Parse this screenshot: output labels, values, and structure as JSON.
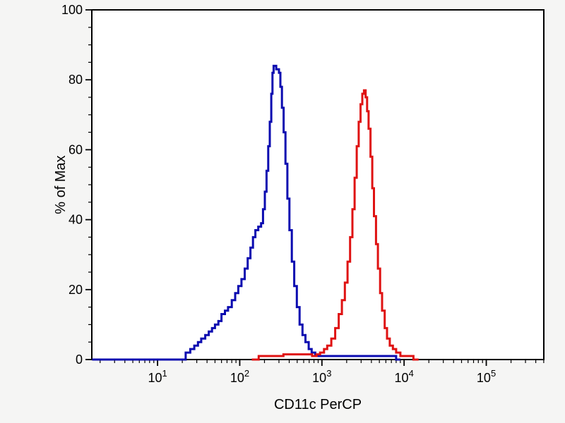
{
  "figure": {
    "background_color": "#f5f5f4",
    "plot_background": "#ffffff",
    "frame_color": "#000000"
  },
  "chart_data": {
    "type": "line",
    "subtype": "flow-cytometry-histogram",
    "title": "",
    "xlabel": "CD11c PerCP",
    "ylabel": "% of Max",
    "x_scale": "log10",
    "x_range_log10": [
      0.2,
      5.7
    ],
    "ylim": [
      0,
      100
    ],
    "grid": false,
    "legend": false,
    "y_major_ticks": [
      0,
      20,
      40,
      60,
      80,
      100
    ],
    "y_minor_step": 5,
    "x_major_ticks": [
      {
        "base": "10",
        "exp": "1",
        "value": 10
      },
      {
        "base": "10",
        "exp": "2",
        "value": 100
      },
      {
        "base": "10",
        "exp": "3",
        "value": 1000
      },
      {
        "base": "10",
        "exp": "4",
        "value": 10000
      },
      {
        "base": "10",
        "exp": "5",
        "value": 100000
      }
    ],
    "x_minor_multiples": [
      2,
      3,
      4,
      5,
      6,
      7,
      8,
      9
    ],
    "series": [
      {
        "name": "blue",
        "color": "#0b0bb0",
        "line_width": 3,
        "points": [
          [
            1.6,
            0
          ],
          [
            20,
            0
          ],
          [
            22,
            2
          ],
          [
            25,
            3
          ],
          [
            28,
            4
          ],
          [
            31,
            5
          ],
          [
            34,
            6
          ],
          [
            38,
            7
          ],
          [
            42,
            8
          ],
          [
            46,
            9
          ],
          [
            50,
            10
          ],
          [
            55,
            11
          ],
          [
            60,
            13
          ],
          [
            66,
            14
          ],
          [
            72,
            15
          ],
          [
            80,
            17
          ],
          [
            88,
            19
          ],
          [
            96,
            21
          ],
          [
            105,
            23
          ],
          [
            115,
            26
          ],
          [
            125,
            29
          ],
          [
            135,
            32
          ],
          [
            145,
            35
          ],
          [
            155,
            37
          ],
          [
            168,
            38
          ],
          [
            182,
            39
          ],
          [
            192,
            43
          ],
          [
            202,
            48
          ],
          [
            212,
            54
          ],
          [
            222,
            61
          ],
          [
            232,
            68
          ],
          [
            242,
            76
          ],
          [
            250,
            82
          ],
          [
            258,
            84
          ],
          [
            268,
            84
          ],
          [
            278,
            83
          ],
          [
            290,
            83
          ],
          [
            300,
            82
          ],
          [
            312,
            78
          ],
          [
            326,
            72
          ],
          [
            342,
            65
          ],
          [
            360,
            56
          ],
          [
            380,
            46
          ],
          [
            402,
            37
          ],
          [
            430,
            28
          ],
          [
            460,
            21
          ],
          [
            495,
            15
          ],
          [
            535,
            10
          ],
          [
            580,
            7
          ],
          [
            630,
            5
          ],
          [
            690,
            3
          ],
          [
            750,
            2
          ],
          [
            830,
            1
          ],
          [
            1000,
            1
          ],
          [
            2000,
            1
          ],
          [
            3500,
            1
          ],
          [
            5000,
            1
          ],
          [
            6500,
            1
          ],
          [
            8000,
            0
          ],
          [
            9000,
            0
          ]
        ]
      },
      {
        "name": "red",
        "color": "#df1212",
        "line_width": 3,
        "points": [
          [
            140,
            0
          ],
          [
            170,
            1
          ],
          [
            260,
            1
          ],
          [
            340,
            1.5
          ],
          [
            520,
            1.5
          ],
          [
            660,
            1.5
          ],
          [
            760,
            1
          ],
          [
            860,
            1.5
          ],
          [
            950,
            2
          ],
          [
            1060,
            3
          ],
          [
            1160,
            4
          ],
          [
            1300,
            6
          ],
          [
            1450,
            9
          ],
          [
            1600,
            13
          ],
          [
            1750,
            17
          ],
          [
            1900,
            22
          ],
          [
            2050,
            28
          ],
          [
            2200,
            35
          ],
          [
            2350,
            43
          ],
          [
            2500,
            52
          ],
          [
            2650,
            61
          ],
          [
            2800,
            68
          ],
          [
            2950,
            73
          ],
          [
            3100,
            76
          ],
          [
            3250,
            77
          ],
          [
            3400,
            75
          ],
          [
            3550,
            71
          ],
          [
            3700,
            66
          ],
          [
            3900,
            58
          ],
          [
            4100,
            49
          ],
          [
            4300,
            41
          ],
          [
            4550,
            33
          ],
          [
            4800,
            26
          ],
          [
            5100,
            19
          ],
          [
            5400,
            14
          ],
          [
            5800,
            9
          ],
          [
            6200,
            6
          ],
          [
            6700,
            4
          ],
          [
            7300,
            3
          ],
          [
            8000,
            2
          ],
          [
            9000,
            1
          ],
          [
            11000,
            1
          ],
          [
            13000,
            0
          ],
          [
            15000,
            0
          ]
        ]
      }
    ]
  }
}
